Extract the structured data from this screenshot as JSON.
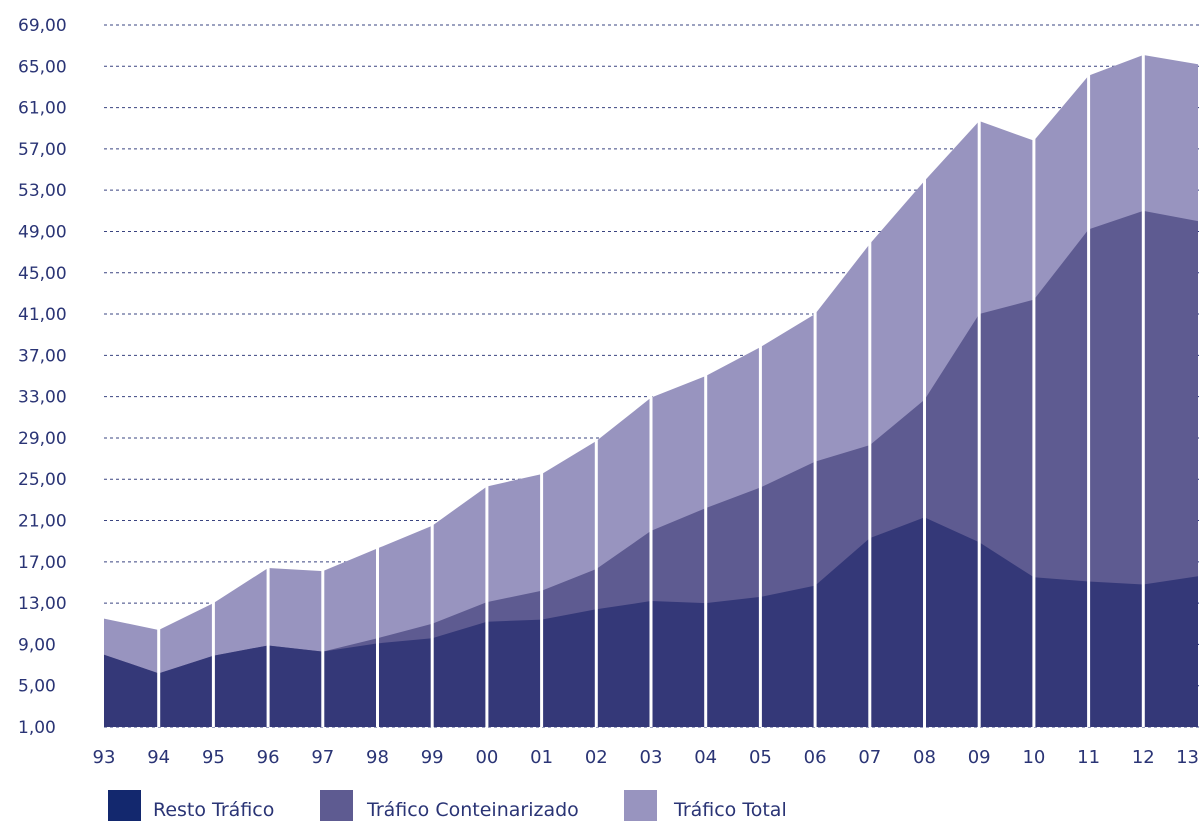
{
  "chart_data": {
    "type": "area",
    "stacked": true,
    "categories": [
      "93",
      "94",
      "95",
      "96",
      "97",
      "98",
      "99",
      "00",
      "01",
      "02",
      "03",
      "04",
      "05",
      "06",
      "07",
      "08",
      "09",
      "10",
      "11",
      "12",
      "13"
    ],
    "series": [
      {
        "name": "Resto Tráfico",
        "color": "#343878",
        "values": [
          8.0,
          6.2,
          7.9,
          8.9,
          8.3,
          9.1,
          9.6,
          11.2,
          11.4,
          12.4,
          13.2,
          13.0,
          13.6,
          14.7,
          19.3,
          21.3,
          18.9,
          15.5,
          15.1,
          14.8,
          15.6
        ]
      },
      {
        "name": "Tráfico Conteinarizado",
        "color": "#5e5b91",
        "values": [
          8.0,
          6.2,
          7.9,
          8.9,
          8.3,
          9.6,
          11.0,
          13.1,
          14.2,
          16.3,
          20.0,
          22.2,
          24.2,
          26.7,
          28.3,
          32.7,
          41.0,
          42.4,
          49.2,
          51.0,
          50.0
        ]
      },
      {
        "name": "Tráfico Total",
        "color": "#9894bf",
        "values": [
          11.5,
          10.4,
          13.0,
          16.4,
          16.1,
          18.3,
          20.5,
          24.3,
          25.5,
          28.7,
          32.9,
          35.0,
          37.8,
          41.0,
          47.8,
          53.9,
          59.7,
          57.8,
          64.1,
          66.1,
          65.2
        ]
      }
    ],
    "y_ticks": [
      "1,00",
      "5,00",
      "9,00",
      "13,00",
      "17,00",
      "21,00",
      "25,00",
      "29,00",
      "33,00",
      "37,00",
      "41,00",
      "45,00",
      "49,00",
      "53,00",
      "57,00",
      "61,00",
      "65,00",
      "69,00"
    ],
    "ylim": [
      1,
      69
    ],
    "grid": "horizontal-dashed",
    "legend_position": "bottom",
    "legend": [
      {
        "label": "Resto Tráfico",
        "color": "#13286e"
      },
      {
        "label": "Tráfico Conteinarizado",
        "color": "#5e5b91"
      },
      {
        "label": "Tráfico Total",
        "color": "#9894bf"
      }
    ],
    "title": "",
    "xlabel": "",
    "ylabel": ""
  }
}
